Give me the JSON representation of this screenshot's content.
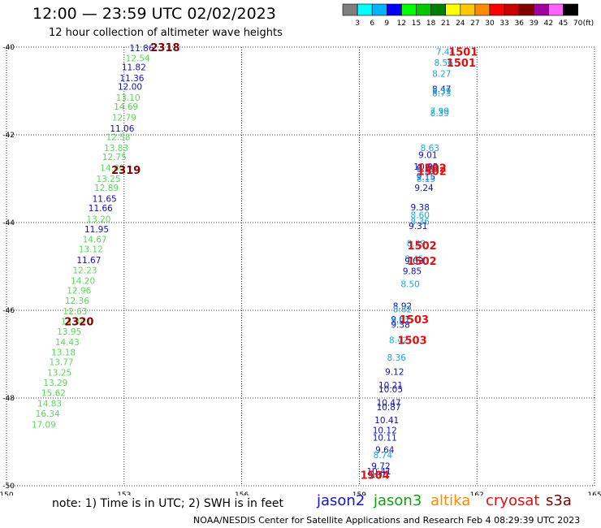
{
  "title": "12:00 — 23:59 UTC 02/02/2023",
  "subtitle": "12 hour collection of altimeter wave heights",
  "note": "note:  1) Time is in UTC;  2) SWH is in feet",
  "credit": "NOAA/NESDIS Center for Satellite Applications and Research    Feb  4 08:29:39 UTC 2023",
  "satellites": [
    {
      "name": "jason2",
      "color": "#1515d0"
    },
    {
      "name": "jason3",
      "color": "#10a010"
    },
    {
      "name": "altika",
      "color": "#ff8a00"
    },
    {
      "name": "cryosat",
      "color": "#e01010"
    },
    {
      "name": "s3a",
      "color": "#7a0000"
    }
  ],
  "legend": {
    "unit": "(ft)",
    "bins": [
      {
        "label": "3",
        "color": "#7f7f7f"
      },
      {
        "label": "6",
        "color": "#00ffff"
      },
      {
        "label": "9",
        "color": "#00b4ff"
      },
      {
        "label": "12",
        "color": "#0000ff"
      },
      {
        "label": "15",
        "color": "#00ff00"
      },
      {
        "label": "18",
        "color": "#00c800"
      },
      {
        "label": "21",
        "color": "#008000"
      },
      {
        "label": "24",
        "color": "#ffff00"
      },
      {
        "label": "27",
        "color": "#ffc800"
      },
      {
        "label": "30",
        "color": "#ff8c00"
      },
      {
        "label": "33",
        "color": "#ff0000"
      },
      {
        "label": "36",
        "color": "#c80000"
      },
      {
        "label": "39",
        "color": "#800000"
      },
      {
        "label": "42",
        "color": "#a000a0"
      },
      {
        "label": "45",
        "color": "#ff64ff"
      },
      {
        "label": "70",
        "color": "#000000"
      }
    ]
  },
  "map": {
    "lon_range": [
      150,
      165
    ],
    "lat_range": [
      -50,
      -40
    ],
    "lon_ticks": [
      {
        "v": 150,
        "label": "150"
      },
      {
        "v": 153,
        "label": "153"
      },
      {
        "v": 156,
        "label": "156"
      },
      {
        "v": 159,
        "label": "159"
      },
      {
        "v": 162,
        "label": "162"
      },
      {
        "v": 165,
        "label": "165"
      }
    ],
    "lat_ticks": [
      {
        "v": -40,
        "label": "-40"
      },
      {
        "v": -42,
        "label": "-42"
      },
      {
        "v": -44,
        "label": "-44"
      },
      {
        "v": -46,
        "label": "-46"
      },
      {
        "v": -48,
        "label": "-48"
      },
      {
        "v": -50,
        "label": "-50"
      }
    ]
  },
  "colors": {
    "green": "#5ad85a",
    "blue": "#1010c0",
    "cyan": "#18a8e0",
    "darkred": "#800000",
    "red": "#e01010"
  },
  "track_labels": [
    {
      "text": "2318",
      "lon": 154.05,
      "lat": -40.0,
      "color": "darkred"
    },
    {
      "text": "2319",
      "lon": 153.05,
      "lat": -42.8,
      "color": "darkred"
    },
    {
      "text": "2320",
      "lon": 151.85,
      "lat": -46.25,
      "color": "darkred"
    },
    {
      "text": "1501",
      "lon": 161.65,
      "lat": -40.1,
      "color": "red"
    },
    {
      "text": "1501",
      "lon": 161.6,
      "lat": -40.35,
      "color": "red"
    },
    {
      "text": "1502",
      "lon": 160.85,
      "lat": -42.75,
      "color": "red"
    },
    {
      "text": "1502",
      "lon": 160.85,
      "lat": -42.82,
      "color": "red"
    },
    {
      "text": "1502",
      "lon": 160.6,
      "lat": -44.52,
      "color": "red"
    },
    {
      "text": "1502",
      "lon": 160.6,
      "lat": -44.87,
      "color": "red"
    },
    {
      "text": "1503",
      "lon": 160.4,
      "lat": -46.2,
      "color": "red"
    },
    {
      "text": "1503",
      "lon": 160.35,
      "lat": -46.68,
      "color": "red"
    },
    {
      "text": "1504",
      "lon": 159.4,
      "lat": -49.75,
      "color": "red"
    }
  ],
  "points": [
    {
      "v": "11.86",
      "lon": 153.45,
      "lat": -40.02,
      "c": "blue"
    },
    {
      "v": "12.54",
      "lon": 153.35,
      "lat": -40.25,
      "c": "green"
    },
    {
      "v": "11.82",
      "lon": 153.25,
      "lat": -40.45,
      "c": "blue"
    },
    {
      "v": "11.36",
      "lon": 153.2,
      "lat": -40.7,
      "c": "blue"
    },
    {
      "v": "12.00",
      "lon": 153.15,
      "lat": -40.9,
      "c": "blue"
    },
    {
      "v": "13.10",
      "lon": 153.1,
      "lat": -41.15,
      "c": "green"
    },
    {
      "v": "14.69",
      "lon": 153.05,
      "lat": -41.35,
      "c": "green"
    },
    {
      "v": "12.79",
      "lon": 153.0,
      "lat": -41.6,
      "c": "green"
    },
    {
      "v": "11.06",
      "lon": 152.95,
      "lat": -41.85,
      "c": "blue"
    },
    {
      "v": "12.58",
      "lon": 152.85,
      "lat": -42.05,
      "c": "green"
    },
    {
      "v": "13.83",
      "lon": 152.8,
      "lat": -42.3,
      "c": "green"
    },
    {
      "v": "12.75",
      "lon": 152.75,
      "lat": -42.5,
      "c": "green"
    },
    {
      "v": "14.80",
      "lon": 152.7,
      "lat": -42.75,
      "c": "green"
    },
    {
      "v": "13.25",
      "lon": 152.6,
      "lat": -43.0,
      "c": "green"
    },
    {
      "v": "12.89",
      "lon": 152.55,
      "lat": -43.2,
      "c": "green"
    },
    {
      "v": "11.65",
      "lon": 152.5,
      "lat": -43.45,
      "c": "blue"
    },
    {
      "v": "11.66",
      "lon": 152.4,
      "lat": -43.67,
      "c": "blue"
    },
    {
      "v": "13.20",
      "lon": 152.35,
      "lat": -43.92,
      "c": "green"
    },
    {
      "v": "11.95",
      "lon": 152.3,
      "lat": -44.15,
      "c": "blue"
    },
    {
      "v": "14.67",
      "lon": 152.25,
      "lat": -44.38,
      "c": "green"
    },
    {
      "v": "13.12",
      "lon": 152.15,
      "lat": -44.6,
      "c": "green"
    },
    {
      "v": "11.67",
      "lon": 152.1,
      "lat": -44.85,
      "c": "blue"
    },
    {
      "v": "12.23",
      "lon": 152.0,
      "lat": -45.08,
      "c": "green"
    },
    {
      "v": "14.20",
      "lon": 151.95,
      "lat": -45.32,
      "c": "green"
    },
    {
      "v": "12.96",
      "lon": 151.85,
      "lat": -45.55,
      "c": "green"
    },
    {
      "v": "12.36",
      "lon": 151.8,
      "lat": -45.78,
      "c": "green"
    },
    {
      "v": "12.63",
      "lon": 151.75,
      "lat": -46.02,
      "c": "green"
    },
    {
      "v": "14.34",
      "lon": 151.7,
      "lat": -46.25,
      "c": "green"
    },
    {
      "v": "13.95",
      "lon": 151.6,
      "lat": -46.48,
      "c": "green"
    },
    {
      "v": "14.43",
      "lon": 151.55,
      "lat": -46.72,
      "c": "green"
    },
    {
      "v": "13.18",
      "lon": 151.45,
      "lat": -46.95,
      "c": "green"
    },
    {
      "v": "13.77",
      "lon": 151.4,
      "lat": -47.18,
      "c": "green"
    },
    {
      "v": "13.25",
      "lon": 151.35,
      "lat": -47.42,
      "c": "green"
    },
    {
      "v": "13.29",
      "lon": 151.25,
      "lat": -47.65,
      "c": "green"
    },
    {
      "v": "15.62",
      "lon": 151.2,
      "lat": -47.88,
      "c": "green"
    },
    {
      "v": "14.83",
      "lon": 151.1,
      "lat": -48.12,
      "c": "green"
    },
    {
      "v": "16.34",
      "lon": 151.05,
      "lat": -48.35,
      "c": "green"
    },
    {
      "v": "17.09",
      "lon": 150.95,
      "lat": -48.6,
      "c": "green"
    },
    {
      "v": "7.44",
      "lon": 161.2,
      "lat": -40.1,
      "c": "cyan"
    },
    {
      "v": "8.56",
      "lon": 161.15,
      "lat": -40.35,
      "c": "cyan"
    },
    {
      "v": "8.27",
      "lon": 161.1,
      "lat": -40.6,
      "c": "cyan"
    },
    {
      "v": "8.47",
      "lon": 161.1,
      "lat": -40.95,
      "c": "blue"
    },
    {
      "v": "8.39",
      "lon": 161.1,
      "lat": -41.0,
      "c": "cyan"
    },
    {
      "v": "8.73",
      "lon": 161.1,
      "lat": -41.05,
      "c": "cyan"
    },
    {
      "v": "7.99",
      "lon": 161.05,
      "lat": -41.45,
      "c": "cyan"
    },
    {
      "v": "8.39",
      "lon": 161.05,
      "lat": -41.5,
      "c": "cyan"
    },
    {
      "v": "8.63",
      "lon": 160.8,
      "lat": -42.3,
      "c": "cyan"
    },
    {
      "v": "9.01",
      "lon": 160.75,
      "lat": -42.45,
      "c": "blue"
    },
    {
      "v": "10.35",
      "lon": 160.7,
      "lat": -42.72,
      "c": "blue"
    },
    {
      "v": "9.79",
      "lon": 160.7,
      "lat": -42.77,
      "c": "blue"
    },
    {
      "v": "9.43",
      "lon": 160.7,
      "lat": -42.82,
      "c": "cyan"
    },
    {
      "v": "9.15",
      "lon": 160.7,
      "lat": -42.95,
      "c": "blue"
    },
    {
      "v": "8.15",
      "lon": 160.7,
      "lat": -43.0,
      "c": "cyan"
    },
    {
      "v": "9.24",
      "lon": 160.65,
      "lat": -43.2,
      "c": "blue"
    },
    {
      "v": "9.38",
      "lon": 160.55,
      "lat": -43.65,
      "c": "blue"
    },
    {
      "v": "8.60",
      "lon": 160.55,
      "lat": -43.82,
      "c": "cyan"
    },
    {
      "v": "8.36",
      "lon": 160.55,
      "lat": -43.97,
      "c": "cyan"
    },
    {
      "v": "9.31",
      "lon": 160.5,
      "lat": -44.07,
      "c": "blue"
    },
    {
      "v": "8.39",
      "lon": 160.45,
      "lat": -44.47,
      "c": "cyan"
    },
    {
      "v": "8.45",
      "lon": 160.4,
      "lat": -44.82,
      "c": "cyan"
    },
    {
      "v": "9.03",
      "lon": 160.4,
      "lat": -44.87,
      "c": "blue"
    },
    {
      "v": "9.85",
      "lon": 160.35,
      "lat": -45.1,
      "c": "blue"
    },
    {
      "v": "8.50",
      "lon": 160.3,
      "lat": -45.4,
      "c": "cyan"
    },
    {
      "v": "8.92",
      "lon": 160.1,
      "lat": -45.9,
      "c": "blue"
    },
    {
      "v": "8.82",
      "lon": 160.1,
      "lat": -45.97,
      "c": "cyan"
    },
    {
      "v": "9.01",
      "lon": 160.05,
      "lat": -46.2,
      "c": "blue"
    },
    {
      "v": "8.81",
      "lon": 160.05,
      "lat": -46.25,
      "c": "cyan"
    },
    {
      "v": "9.38",
      "lon": 160.05,
      "lat": -46.32,
      "c": "blue"
    },
    {
      "v": "8.42",
      "lon": 160.0,
      "lat": -46.68,
      "c": "cyan"
    },
    {
      "v": "8.36",
      "lon": 159.95,
      "lat": -47.07,
      "c": "cyan"
    },
    {
      "v": "9.12",
      "lon": 159.9,
      "lat": -47.4,
      "c": "blue"
    },
    {
      "v": "10.21",
      "lon": 159.8,
      "lat": -47.7,
      "c": "blue"
    },
    {
      "v": "10.05",
      "lon": 159.8,
      "lat": -47.8,
      "c": "blue"
    },
    {
      "v": "10.47",
      "lon": 159.75,
      "lat": -48.1,
      "c": "blue"
    },
    {
      "v": "10.87",
      "lon": 159.75,
      "lat": -48.2,
      "c": "blue"
    },
    {
      "v": "10.41",
      "lon": 159.7,
      "lat": -48.5,
      "c": "blue"
    },
    {
      "v": "10.12",
      "lon": 159.65,
      "lat": -48.73,
      "c": "blue"
    },
    {
      "v": "10.11",
      "lon": 159.65,
      "lat": -48.9,
      "c": "blue"
    },
    {
      "v": "9.64",
      "lon": 159.65,
      "lat": -49.18,
      "c": "blue"
    },
    {
      "v": "8.74",
      "lon": 159.6,
      "lat": -49.3,
      "c": "cyan"
    },
    {
      "v": "9.72",
      "lon": 159.55,
      "lat": -49.55,
      "c": "blue"
    },
    {
      "v": "10.41",
      "lon": 159.5,
      "lat": -49.67,
      "c": "blue"
    },
    {
      "v": "9.37",
      "lon": 159.45,
      "lat": -49.75,
      "c": "blue"
    }
  ]
}
